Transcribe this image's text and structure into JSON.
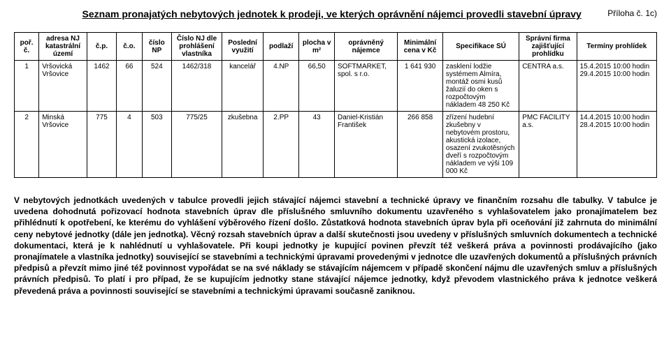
{
  "header": {
    "title": "Seznam pronajatých nebytových jednotek k prodeji, ve kterých oprávnění nájemci provedli stavební úpravy",
    "attachment": "Příloha č. 1c)"
  },
  "table": {
    "columns": [
      "poř. č.",
      "adresa NJ katastrální území",
      "č.p.",
      "č.o.",
      "číslo NP",
      "Číslo NJ dle prohlášení vlastníka",
      "Poslední využití",
      "podlaží",
      "plocha v m²",
      "oprávněný nájemce",
      "Minimální cena v Kč",
      "Specifikace SÚ",
      "Správní firma zajišťující prohlídku",
      "Termíny prohlídek"
    ],
    "rows": [
      {
        "por": "1",
        "adresa": "Vršovická Vršovice",
        "cp": "1462",
        "co": "66",
        "np": "524",
        "njdle": "1462/318",
        "vyuziti": "kancelář",
        "podlazi": "4.NP",
        "plocha": "66,50",
        "najemce": "SOFTMARKET, spol. s r.o.",
        "cena": "1 641 930",
        "spec": "zasklení lodžie systémem Almíra, montáž osmi kusů žaluzií do oken s rozpočtovým nákladem 48 250 Kč",
        "firma": "CENTRA a.s.",
        "termin1": "15.4.2015  10:00 hodin",
        "termin2": "29.4.2015  10:00 hodin"
      },
      {
        "por": "2",
        "adresa": "Minská Vršovice",
        "cp": "775",
        "co": "4",
        "np": "503",
        "njdle": "775/25",
        "vyuziti": "zkušebna",
        "podlazi": "2.PP",
        "plocha": "43",
        "najemce": "Daniel-Kristián František",
        "cena": "266 858",
        "spec": "zřízení hudební zkušebny v nebytovém prostoru, akustická izolace, osazení zvukotěsných dveří s rozpočtovým nákladem ve výši 109 000 Kč",
        "firma": "PMC FACILITY a.s.",
        "termin1": "14.4.2015  10:00 hodin",
        "termin2": "28.4.2015  10:00 hodin"
      }
    ]
  },
  "paragraph": "V nebytových jednotkách uvedených v tabulce provedli jejich stávající nájemci stavební a technické úpravy ve finančním rozsahu dle tabulky. V tabulce je uvedena dohodnutá pořizovací hodnota stavebních úprav dle příslušného smluvního dokumentu uzavřeného s vyhlašovatelem jako pronajímatelem bez přihlédnutí k opotřebení, ke kterému do vyhlášení výběrového řízení došlo. Zůstatková hodnota stavebních úprav byla při oceňování již zahrnuta do minimální ceny nebytové jednotky (dále jen jednotka). Věcný rozsah stavebních úprav a další skutečnosti jsou uvedeny v příslušných smluvních dokumentech a technické dokumentaci, která je k nahlédnutí u vyhlašovatele. Při koupi jednotky je kupující povinen převzít též veškerá práva a povinnosti prodávajícího (jako pronajímatele a vlastníka jednotky) související se stavebními a technickými úpravami provedenými v jednotce dle uzavřených dokumentů a příslušných právních předpisů a převzít mimo jiné též povinnost vypořádat se na své náklady se stávajícím nájemcem v případě skončení nájmu dle uzavřených smluv a příslušných právních předpisů. To platí i pro případ, že se kupujícím jednotky stane stávající nájemce jednotky, když převodem vlastnického práva k jednotce veškerá převedená práva a povinnosti související se stavebními a technickými úpravami současně zaniknou."
}
